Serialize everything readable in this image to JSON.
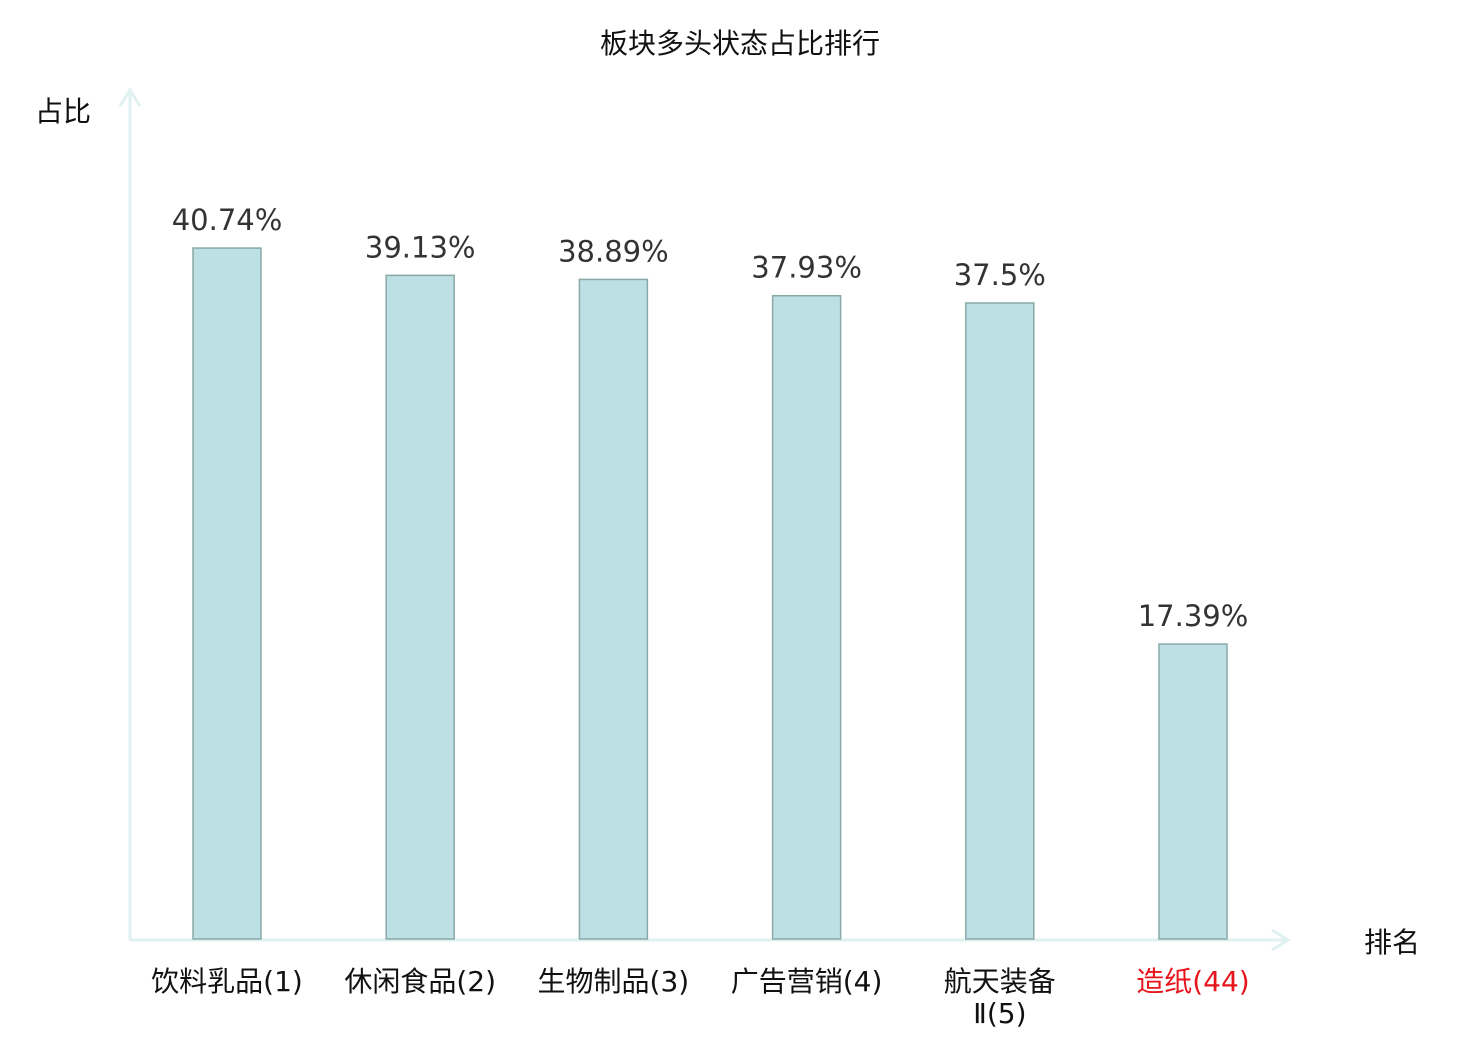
{
  "chart_data": {
    "type": "bar",
    "title": "板块多头状态占比排行",
    "ylabel": "占比",
    "xlabel": "排名",
    "categories": [
      "饮料乳品(1)",
      "休闲食品(2)",
      "生物制品(3)",
      "广告营销(4)",
      "航天装备Ⅱ(5)",
      "造纸(44)"
    ],
    "values": [
      40.74,
      39.13,
      38.89,
      37.93,
      37.5,
      17.39
    ],
    "data_labels": [
      "40.74%",
      "39.13%",
      "38.89%",
      "37.93%",
      "37.5%",
      "17.39%"
    ],
    "highlight_index": 5,
    "ylim": [
      0,
      50
    ],
    "grid": false,
    "colors": {
      "bar": "#bce0e3",
      "bar_edge": "#8aa8a8",
      "axis": "#dff2f0",
      "highlight": "#e8141c",
      "text": "#333333"
    }
  }
}
